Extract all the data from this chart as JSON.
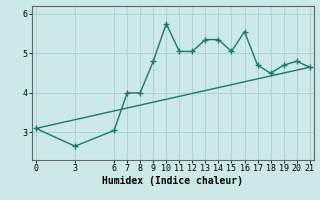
{
  "title": "",
  "xlabel": "Humidex (Indice chaleur)",
  "bg_color": "#cce8e8",
  "line_color": "#1a7a6a",
  "grid_color": "#aad4d4",
  "axis_color": "#666666",
  "curve_x": [
    0,
    3,
    6,
    7,
    8,
    9,
    10,
    11,
    12,
    13,
    14,
    15,
    16,
    17,
    18,
    19,
    20,
    21
  ],
  "curve_y": [
    3.1,
    2.65,
    3.05,
    4.0,
    4.0,
    4.8,
    5.75,
    5.05,
    5.05,
    5.35,
    5.35,
    5.05,
    5.55,
    4.7,
    4.5,
    4.7,
    4.8,
    4.65
  ],
  "trend_x": [
    0,
    21
  ],
  "trend_y": [
    3.1,
    4.65
  ],
  "xticks": [
    0,
    3,
    6,
    7,
    8,
    9,
    10,
    11,
    12,
    13,
    14,
    15,
    16,
    17,
    18,
    19,
    20,
    21
  ],
  "yticks": [
    3,
    4,
    5,
    6
  ],
  "ylim": [
    2.3,
    6.2
  ],
  "xlim": [
    -0.3,
    21.3
  ],
  "markersize": 4,
  "linewidth": 1.0,
  "label_fontsize": 7,
  "tick_fontsize": 6
}
